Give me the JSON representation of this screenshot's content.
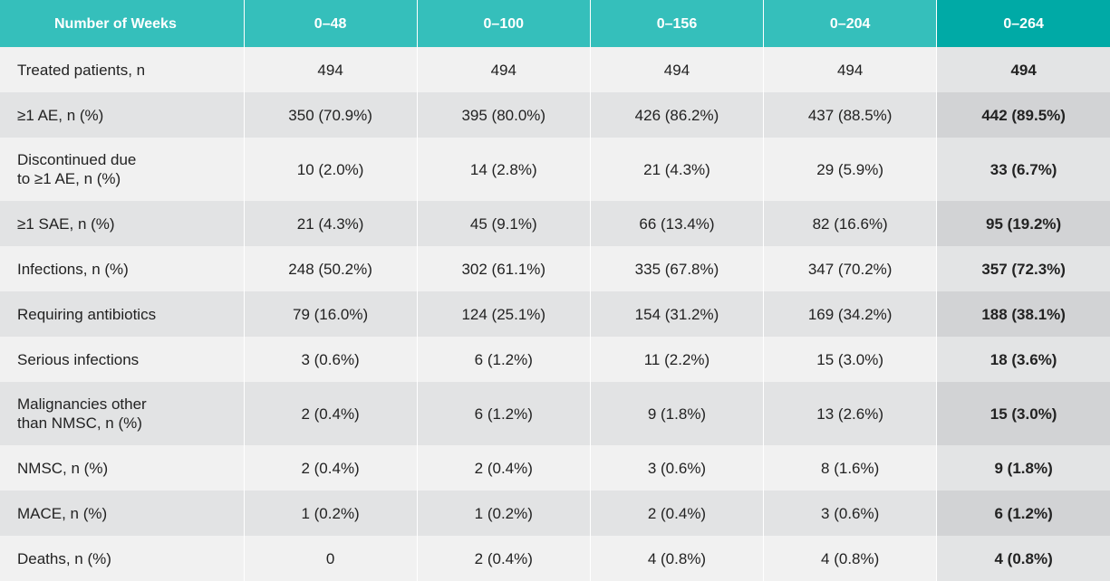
{
  "table": {
    "header": [
      "Number of Weeks",
      "0–48",
      "0–100",
      "0–156",
      "0–204",
      "0–264"
    ],
    "rows": [
      [
        "Treated patients, n",
        "494",
        "494",
        "494",
        "494",
        "494"
      ],
      [
        "≥1 AE, n (%)",
        "350 (70.9%)",
        "395 (80.0%)",
        "426 (86.2%)",
        "437 (88.5%)",
        "442 (89.5%)"
      ],
      [
        "Discontinued due\nto ≥1 AE, n (%)",
        "10 (2.0%)",
        "14 (2.8%)",
        "21 (4.3%)",
        "29 (5.9%)",
        "33 (6.7%)"
      ],
      [
        "≥1 SAE, n (%)",
        "21 (4.3%)",
        "45 (9.1%)",
        "66 (13.4%)",
        "82 (16.6%)",
        "95 (19.2%)"
      ],
      [
        "Infections, n (%)",
        "248 (50.2%)",
        "302 (61.1%)",
        "335 (67.8%)",
        "347 (70.2%)",
        "357 (72.3%)"
      ],
      [
        "Requiring antibiotics",
        "79 (16.0%)",
        "124 (25.1%)",
        "154 (31.2%)",
        "169 (34.2%)",
        "188 (38.1%)"
      ],
      [
        "Serious infections",
        "3 (0.6%)",
        "6 (1.2%)",
        "11 (2.2%)",
        "15 (3.0%)",
        "18 (3.6%)"
      ],
      [
        "Malignancies other\nthan NMSC, n (%)",
        "2 (0.4%)",
        "6 (1.2%)",
        "9 (1.8%)",
        "13 (2.6%)",
        "15 (3.0%)"
      ],
      [
        "NMSC, n (%)",
        "2 (0.4%)",
        "2 (0.4%)",
        "3 (0.6%)",
        "8 (1.6%)",
        "9 (1.8%)"
      ],
      [
        "MACE, n (%)",
        "1 (0.2%)",
        "1 (0.2%)",
        "2 (0.4%)",
        "3 (0.6%)",
        "6 (1.2%)"
      ],
      [
        "Deaths, n (%)",
        "0",
        "2 (0.4%)",
        "4 (0.8%)",
        "4 (0.8%)",
        "4 (0.8%)"
      ]
    ]
  }
}
